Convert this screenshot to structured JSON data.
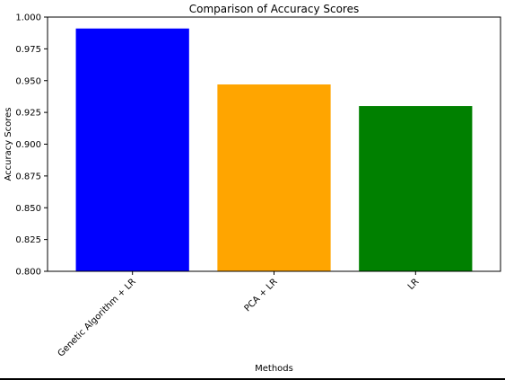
{
  "chart_data": {
    "type": "bar",
    "title": "Comparison of Accuracy Scores",
    "xlabel": "Methods",
    "ylabel": "Accuracy Scores",
    "categories": [
      "Genetic Algorithm + LR",
      "PCA + LR",
      "LR"
    ],
    "values": [
      0.991,
      0.947,
      0.93
    ],
    "colors": [
      "#0000ff",
      "#ffa500",
      "#008000"
    ],
    "ylim": [
      0.8,
      1.0
    ],
    "yticks": [
      0.8,
      0.825,
      0.85,
      0.875,
      0.9,
      0.925,
      0.95,
      0.975,
      1.0
    ],
    "ytick_labels": [
      "0.800",
      "0.825",
      "0.850",
      "0.875",
      "0.900",
      "0.925",
      "0.950",
      "0.975",
      "1.000"
    ],
    "grid": false,
    "xtick_rotation_deg": 45
  }
}
